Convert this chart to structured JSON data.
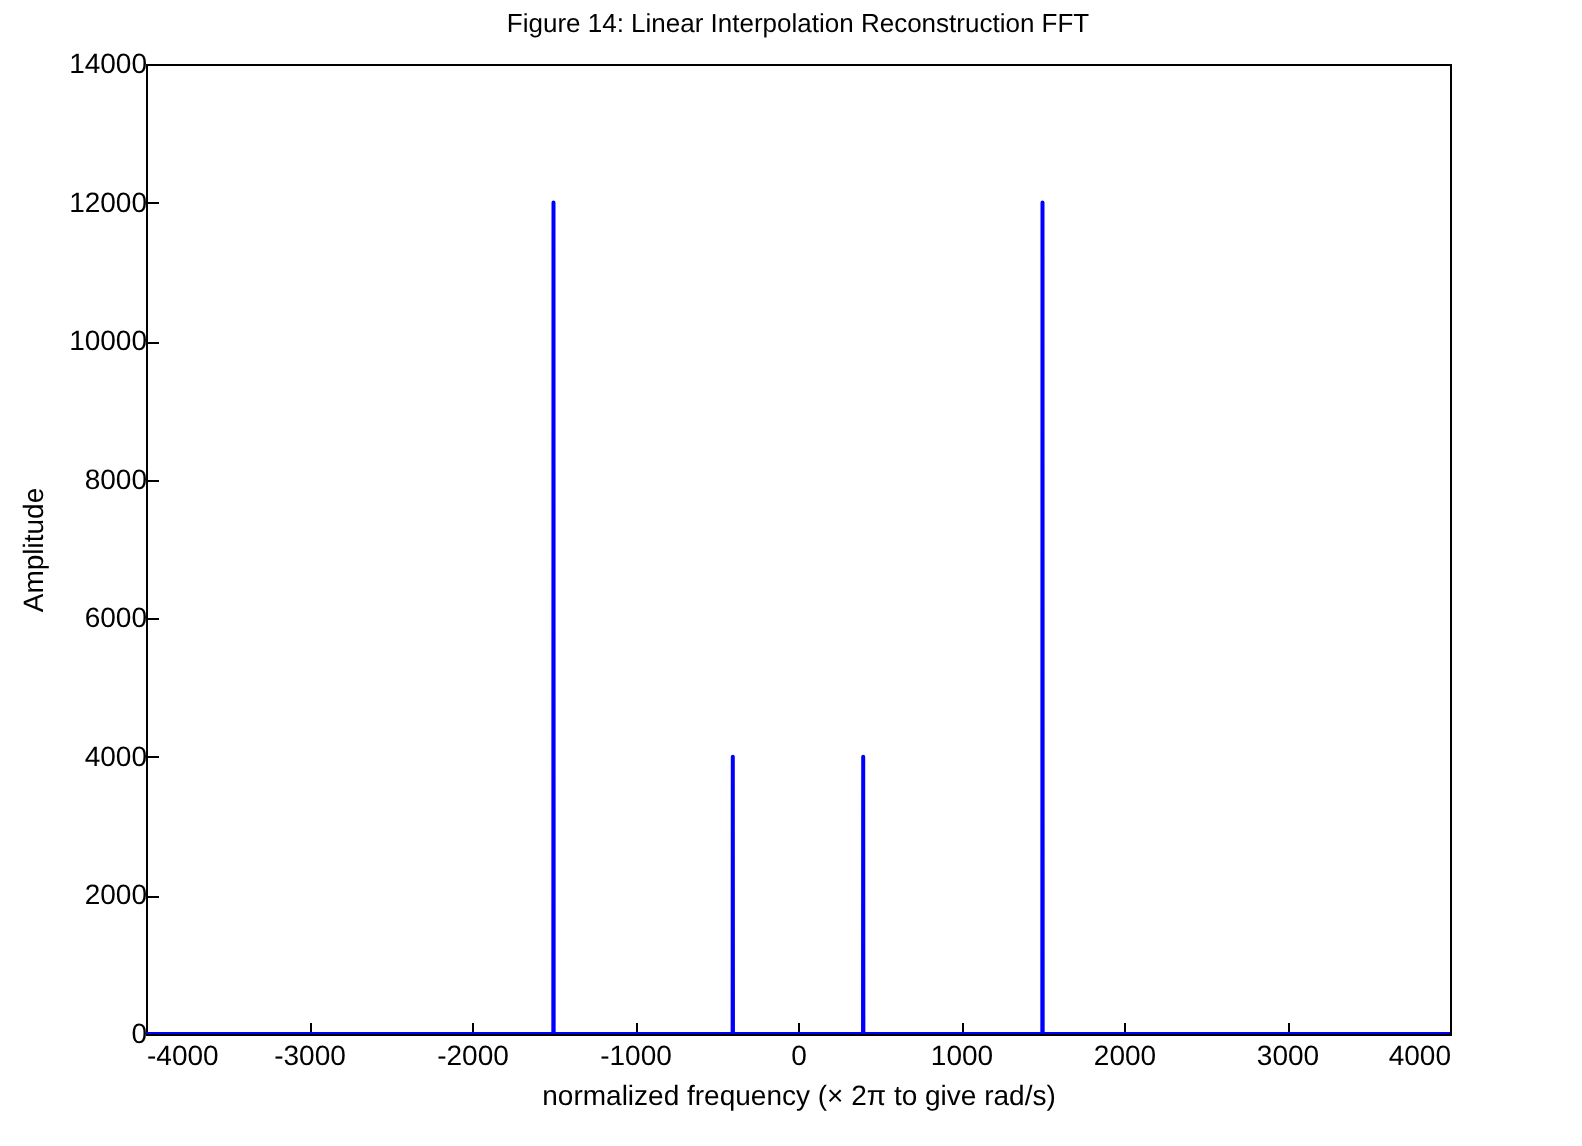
{
  "chart_data": {
    "type": "line",
    "title": "Figure 14: Linear Interpolation Reconstruction FFT",
    "xlabel": "normalized frequency (× 2π to give rad/s)",
    "ylabel": "Amplitude",
    "x": [
      -4000,
      -1501,
      -1500,
      -1499,
      -401,
      -400,
      -399,
      399,
      400,
      401,
      1499,
      1500,
      1501,
      4000
    ],
    "series": [
      {
        "color": "#0000ff",
        "values": [
          0,
          0,
          12000,
          0,
          0,
          4000,
          0,
          0,
          4000,
          0,
          0,
          12000,
          0,
          0
        ]
      }
    ],
    "xlim": [
      -4000,
      4000
    ],
    "xticks": [
      -4000,
      -3000,
      -2000,
      -1000,
      0,
      1000,
      2000,
      3000,
      4000
    ],
    "ylim": [
      0,
      14000
    ],
    "yticks": [
      0,
      2000,
      4000,
      6000,
      8000,
      10000,
      12000,
      14000
    ],
    "grid": false,
    "legend": false,
    "line_style": "solid",
    "marker": "none"
  }
}
